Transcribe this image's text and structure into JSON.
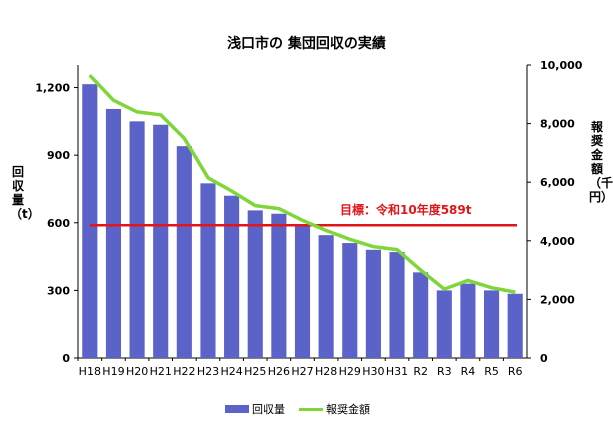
{
  "chart_data": {
    "type": "bar",
    "title": "浅口市の 集団回収の実績",
    "ylabel_left": "回収量（t）",
    "ylabel_right": "報奨金額（千円）",
    "categories": [
      "H18",
      "H19",
      "H20",
      "H21",
      "H22",
      "H23",
      "H24",
      "H25",
      "H26",
      "H27",
      "H28",
      "H29",
      "H30",
      "H31",
      "R2",
      "R3",
      "R4",
      "R5",
      "R6"
    ],
    "series": [
      {
        "name": "回収量",
        "type": "bar",
        "axis": "left",
        "color": "#5b63c8",
        "values": [
          1215,
          1105,
          1050,
          1035,
          940,
          775,
          720,
          655,
          640,
          590,
          545,
          510,
          480,
          470,
          380,
          300,
          330,
          300,
          285
        ]
      },
      {
        "name": "報奨金額",
        "type": "line",
        "axis": "right",
        "color": "#7fd63a",
        "values": [
          9650,
          8800,
          8400,
          8300,
          7500,
          6150,
          5700,
          5200,
          5100,
          4700,
          4350,
          4050,
          3800,
          3700,
          3000,
          2350,
          2650,
          2400,
          2250
        ]
      }
    ],
    "ylim_left": [
      0,
      1300
    ],
    "yticks_left": [
      0,
      300,
      600,
      900,
      1200
    ],
    "ytick_labels_left": [
      "0",
      "300",
      "600",
      "900",
      "1,200"
    ],
    "ylim_right": [
      0,
      10000
    ],
    "yticks_right": [
      0,
      2000,
      4000,
      6000,
      8000,
      10000
    ],
    "ytick_labels_right": [
      "0",
      "2,000",
      "4,000",
      "6,000",
      "8,000",
      "10,000"
    ],
    "target": {
      "value": 589,
      "label": "目標：令和10年度589t",
      "color": "#e0161b"
    },
    "legend_position": "bottom",
    "grid": false
  }
}
